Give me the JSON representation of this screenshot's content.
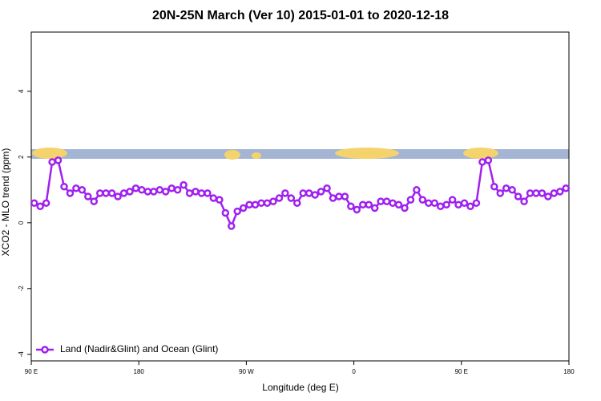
{
  "chart_data": {
    "type": "line",
    "title": "20N-25N March (Ver 10)   2015-01-01 to 2020-12-18",
    "x_label": "Longitude (deg E)",
    "y_label": "XCO2 - MLO trend (ppm)",
    "xlim": [
      90,
      540
    ],
    "ylim": [
      -4.2,
      5.8
    ],
    "xticks": [
      {
        "value": 90,
        "label": "90 E"
      },
      {
        "value": 180,
        "label": "180"
      },
      {
        "value": 270,
        "label": "90 W"
      },
      {
        "value": 360,
        "label": "0"
      },
      {
        "value": 450,
        "label": "90 E"
      },
      {
        "value": 540,
        "label": "180"
      }
    ],
    "yticks": [
      -4,
      -2,
      0,
      2,
      4
    ],
    "legend": "bottom-left",
    "x": [
      92.5,
      97.5,
      102.5,
      107.5,
      112.5,
      117.5,
      122.5,
      127.5,
      132.5,
      137.5,
      142.5,
      147.5,
      152.5,
      157.5,
      162.5,
      167.5,
      172.5,
      177.5,
      182.5,
      187.5,
      192.5,
      197.5,
      202.5,
      207.5,
      212.5,
      217.5,
      222.5,
      227.5,
      232.5,
      237.5,
      242.5,
      247.5,
      252.5,
      257.5,
      262.5,
      267.5,
      272.5,
      277.5,
      282.5,
      287.5,
      292.5,
      297.5,
      302.5,
      307.5,
      312.5,
      317.5,
      322.5,
      327.5,
      332.5,
      337.5,
      342.5,
      347.5,
      352.5,
      357.5,
      362.5,
      367.5,
      372.5,
      377.5,
      382.5,
      387.5,
      392.5,
      397.5,
      402.5,
      407.5,
      412.5,
      417.5,
      422.5,
      427.5,
      432.5,
      437.5,
      442.5,
      447.5,
      452.5,
      457.5,
      462.5,
      467.5,
      472.5,
      477.5,
      482.5,
      487.5,
      492.5,
      497.5,
      502.5,
      507.5,
      512.5,
      517.5,
      522.5,
      527.5,
      532.5,
      537.5
    ],
    "series": [
      {
        "name": "Land (Nadir&Glint) and Ocean (Glint)",
        "color": "#a020f0",
        "values": [
          0.6,
          0.5,
          0.6,
          1.85,
          1.9,
          1.1,
          0.9,
          1.05,
          1.0,
          0.8,
          0.65,
          0.9,
          0.9,
          0.9,
          0.8,
          0.9,
          0.95,
          1.05,
          1.0,
          0.95,
          0.95,
          1.0,
          0.95,
          1.05,
          1.0,
          1.15,
          0.9,
          0.95,
          0.9,
          0.9,
          0.75,
          0.7,
          0.3,
          -0.1,
          0.35,
          0.45,
          0.55,
          0.55,
          0.6,
          0.6,
          0.65,
          0.75,
          0.9,
          0.75,
          0.6,
          0.9,
          0.9,
          0.85,
          0.95,
          1.05,
          0.75,
          0.8,
          0.8,
          0.5,
          0.4,
          0.55,
          0.55,
          0.45,
          0.65,
          0.65,
          0.6,
          0.55,
          0.45,
          0.7,
          1.0,
          0.7,
          0.6,
          0.6,
          0.5,
          0.55,
          0.7,
          0.55,
          0.6,
          0.5,
          0.6,
          1.85,
          1.9,
          1.1,
          0.9,
          1.05,
          1.0,
          0.8,
          0.65,
          0.9,
          0.9,
          0.9,
          0.8,
          0.9,
          0.95,
          1.05
        ]
      }
    ]
  }
}
